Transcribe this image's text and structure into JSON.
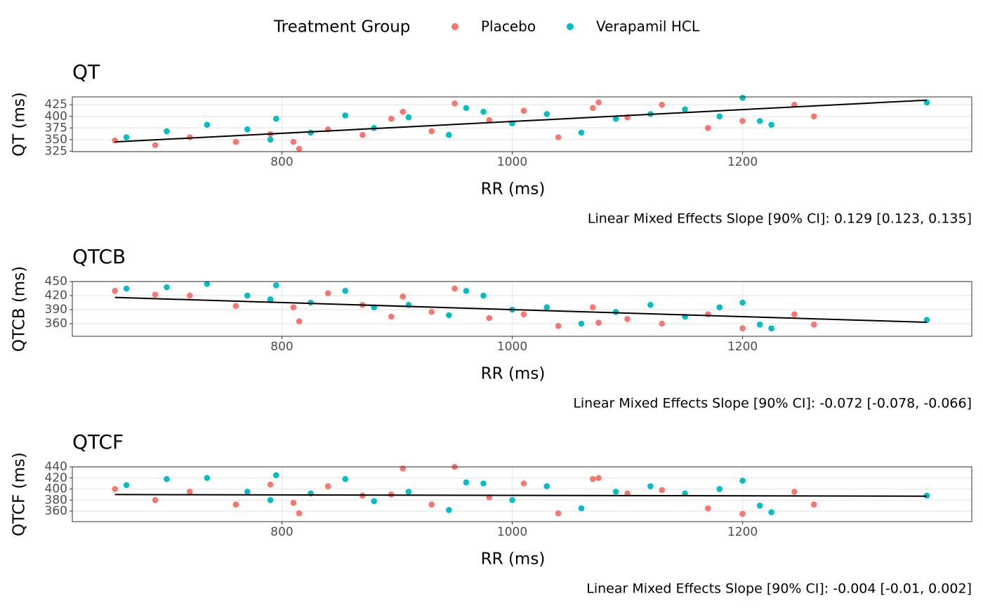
{
  "legend": {
    "title": "Treatment Group",
    "position": "top"
  },
  "chart_data": [
    {
      "type": "scatter",
      "title": "QT",
      "xlabel": "RR (ms)",
      "ylabel": "QT (ms)",
      "annotation": "Linear Mixed Effects Slope [90% CI]: 0.129 [0.123, 0.135]",
      "xlim": [
        618,
        1399
      ],
      "xticks": [
        800,
        1000,
        1200
      ],
      "ylim": [
        324,
        442
      ],
      "yticks": [
        325,
        350,
        375,
        400,
        425
      ],
      "grid": true,
      "series": [
        {
          "name": "Placebo",
          "color": "#F8766D",
          "x": [
            655,
            690,
            720,
            760,
            790,
            815,
            840,
            870,
            905,
            930,
            950,
            980,
            1010,
            1040,
            1070,
            1100,
            1130,
            1170,
            1200,
            1245,
            1262,
            810,
            895,
            1075
          ],
          "values": [
            348,
            338,
            355,
            345,
            362,
            330,
            372,
            360,
            410,
            368,
            428,
            392,
            412,
            355,
            418,
            398,
            425,
            375,
            390,
            425,
            400,
            345,
            395,
            430
          ]
        },
        {
          "name": "Verapamil HCL",
          "color": "#00BFC4",
          "x": [
            665,
            700,
            735,
            770,
            795,
            825,
            855,
            880,
            910,
            945,
            975,
            1000,
            1030,
            1060,
            1090,
            1120,
            1150,
            1180,
            1200,
            1215,
            1225,
            1360,
            790,
            960
          ],
          "values": [
            355,
            368,
            382,
            372,
            395,
            365,
            402,
            375,
            398,
            360,
            410,
            385,
            405,
            365,
            395,
            405,
            415,
            400,
            440,
            390,
            382,
            430,
            350,
            418
          ]
        }
      ],
      "fit": {
        "color": "#000000",
        "x": [
          655,
          1360
        ],
        "values": [
          345,
          435
        ]
      }
    },
    {
      "type": "scatter",
      "title": "QTCB",
      "xlabel": "RR (ms)",
      "ylabel": "QTCB (ms)",
      "annotation": "Linear Mixed Effects Slope [90% CI]: -0.072 [-0.078, -0.066]",
      "xlim": [
        618,
        1399
      ],
      "xticks": [
        800,
        1000,
        1200
      ],
      "ylim": [
        333,
        450
      ],
      "yticks": [
        360,
        390,
        420,
        450
      ],
      "grid": true,
      "series": [
        {
          "name": "Placebo",
          "color": "#F8766D",
          "x": [
            655,
            690,
            720,
            760,
            790,
            815,
            840,
            870,
            905,
            930,
            950,
            980,
            1010,
            1040,
            1070,
            1100,
            1130,
            1170,
            1200,
            1245,
            1262,
            810,
            895,
            1075
          ],
          "values": [
            430,
            422,
            420,
            398,
            410,
            365,
            425,
            400,
            418,
            385,
            435,
            372,
            380,
            355,
            395,
            370,
            360,
            380,
            350,
            380,
            358,
            395,
            375,
            362
          ]
        },
        {
          "name": "Verapamil HCL",
          "color": "#00BFC4",
          "x": [
            665,
            700,
            735,
            770,
            795,
            825,
            855,
            880,
            910,
            945,
            975,
            1000,
            1030,
            1060,
            1090,
            1120,
            1150,
            1180,
            1200,
            1215,
            1225,
            1360,
            790,
            960
          ],
          "values": [
            435,
            438,
            445,
            420,
            442,
            405,
            430,
            395,
            400,
            378,
            420,
            390,
            395,
            360,
            385,
            400,
            375,
            395,
            405,
            358,
            350,
            368,
            412,
            430
          ]
        }
      ],
      "fit": {
        "color": "#000000",
        "x": [
          655,
          1360
        ],
        "values": [
          416,
          363
        ]
      }
    },
    {
      "type": "scatter",
      "title": "QTCF",
      "xlabel": "RR (ms)",
      "ylabel": "QTCF (ms)",
      "annotation": "Linear Mixed Effects Slope [90% CI]: -0.004 [-0.01, 0.002]",
      "xlim": [
        618,
        1399
      ],
      "xticks": [
        800,
        1000,
        1200
      ],
      "ylim": [
        341,
        440
      ],
      "yticks": [
        360,
        380,
        400,
        420,
        440
      ],
      "grid": true,
      "series": [
        {
          "name": "Placebo",
          "color": "#F8766D",
          "x": [
            655,
            690,
            720,
            760,
            790,
            815,
            840,
            870,
            905,
            930,
            950,
            980,
            1010,
            1040,
            1070,
            1100,
            1130,
            1170,
            1200,
            1245,
            1262,
            810,
            895,
            1075
          ],
          "values": [
            400,
            380,
            395,
            372,
            408,
            356,
            405,
            388,
            437,
            372,
            440,
            385,
            410,
            356,
            418,
            392,
            398,
            365,
            355,
            395,
            372,
            375,
            390,
            420
          ]
        },
        {
          "name": "Verapamil HCL",
          "color": "#00BFC4",
          "x": [
            665,
            700,
            735,
            770,
            795,
            825,
            855,
            880,
            910,
            945,
            975,
            1000,
            1030,
            1060,
            1090,
            1120,
            1150,
            1180,
            1200,
            1215,
            1225,
            1360,
            790,
            960
          ],
          "values": [
            407,
            418,
            420,
            395,
            425,
            392,
            418,
            378,
            395,
            362,
            410,
            380,
            405,
            365,
            395,
            405,
            392,
            400,
            415,
            370,
            358,
            388,
            380,
            412
          ]
        }
      ],
      "fit": {
        "color": "#000000",
        "x": [
          655,
          1360
        ],
        "values": [
          390,
          387
        ]
      }
    }
  ]
}
